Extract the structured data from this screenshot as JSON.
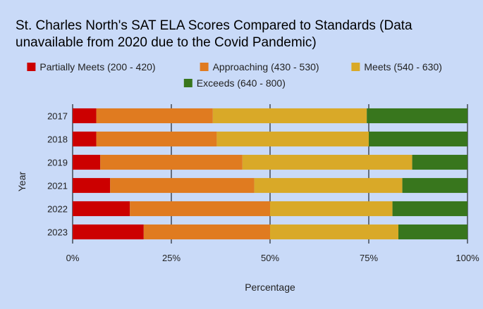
{
  "chart_data": {
    "type": "bar",
    "stacked": true,
    "normalized": true,
    "orientation": "horizontal",
    "title_lines": [
      "St. Charles North's SAT ELA Scores Compared to Standards (Data",
      "unavailable from 2020 due to the Covid Pandemic)"
    ],
    "xlabel": "Percentage",
    "ylabel": "Year",
    "xlim": [
      0,
      100
    ],
    "x_ticks": [
      "0%",
      "25%",
      "50%",
      "75%",
      "100%"
    ],
    "grid": true,
    "legend_position": "top",
    "categories": [
      "2017",
      "2018",
      "2019",
      "2021",
      "2022",
      "2023"
    ],
    "series": [
      {
        "name": "Partially Meets (200 - 420)",
        "color": "#cc0000",
        "values": [
          6,
          6,
          7,
          9.5,
          14.5,
          18
        ]
      },
      {
        "name": "Approaching (430 - 530)",
        "color": "#e07b20",
        "values": [
          29.5,
          30.5,
          36,
          36.5,
          35.5,
          32
        ]
      },
      {
        "name": "Meets (540 - 630)",
        "color": "#d9a928",
        "values": [
          39,
          38.5,
          43,
          37.5,
          31,
          32.5
        ]
      },
      {
        "name": "Exceeds (640 - 800)",
        "color": "#38761d",
        "values": [
          25.5,
          25,
          14,
          16.5,
          19,
          17.5
        ]
      }
    ]
  }
}
